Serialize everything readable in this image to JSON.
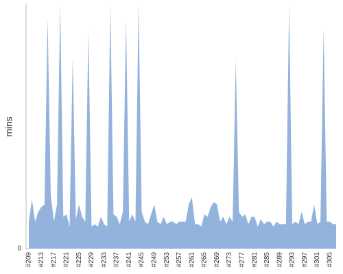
{
  "chart_data": {
    "type": "area",
    "y_label": "mins",
    "color": "#93b3dd",
    "categories": [
      "#209",
      null,
      null,
      null,
      "#213",
      null,
      null,
      null,
      "#217",
      null,
      null,
      null,
      "#221",
      null,
      null,
      null,
      "#225",
      null,
      null,
      null,
      "#229",
      null,
      null,
      null,
      "#233",
      null,
      null,
      null,
      "#237",
      null,
      null,
      null,
      "#241",
      null,
      null,
      null,
      "#245",
      null,
      null,
      null,
      "#249",
      null,
      null,
      null,
      "#253",
      null,
      null,
      null,
      "#257",
      null,
      null,
      null,
      "#261",
      null,
      null,
      null,
      "#265",
      null,
      null,
      null,
      "#269",
      null,
      null,
      null,
      "#273",
      null,
      null,
      null,
      "#277",
      null,
      null,
      null,
      "#281",
      null,
      null,
      null,
      "#285",
      null,
      null,
      null,
      "#289",
      null,
      null,
      null,
      "#293",
      null,
      null,
      null,
      "#297",
      null,
      null,
      null,
      "#301",
      null,
      null,
      null,
      "#305",
      null,
      null
    ],
    "values": [
      11,
      20,
      11,
      15,
      17,
      18,
      94,
      22,
      11,
      18,
      100,
      13,
      14,
      9,
      78,
      12,
      18,
      13,
      11,
      89,
      9,
      10,
      9,
      13,
      10,
      9,
      100,
      14,
      13,
      10,
      15,
      94,
      11,
      14,
      11,
      100,
      15,
      11,
      10,
      14,
      18,
      11,
      10,
      13,
      10,
      11,
      11,
      10,
      11,
      11,
      11,
      18,
      21,
      10,
      10,
      9,
      14,
      13,
      17,
      19,
      18,
      11,
      13,
      10,
      13,
      11,
      77,
      15,
      13,
      14,
      10,
      13,
      13,
      9,
      12,
      10,
      11,
      11,
      9,
      11,
      10,
      10,
      10,
      100,
      10,
      11,
      10,
      15,
      10,
      11,
      11,
      18,
      10,
      11,
      90,
      11,
      11,
      10,
      10
    ],
    "ylim": [
      0,
      100
    ],
    "yticks": [
      0
    ]
  }
}
